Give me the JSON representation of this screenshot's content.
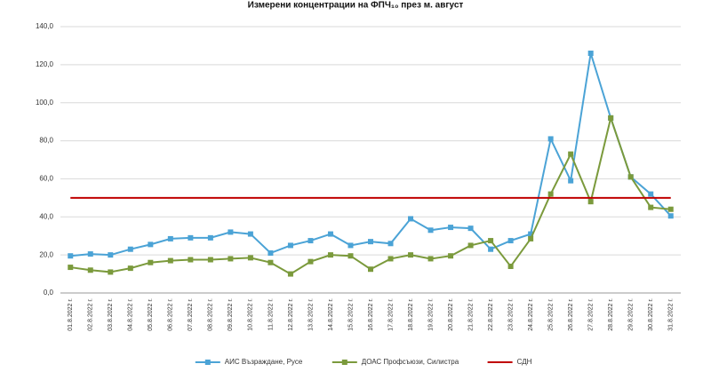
{
  "chart_data": {
    "type": "line",
    "title": "Измерени концентрации на ФПЧ₁₀ през м. август",
    "categories": [
      "01.8.2022 г.",
      "02.8.2022 г.",
      "03.8.2022 г.",
      "04.8.2022 г.",
      "05.8.2022 г.",
      "06.8.2022 г.",
      "07.8.2022 г.",
      "08.8.2022 г.",
      "09.8.2022 г.",
      "10.8.2022 г.",
      "11.8.2022 г.",
      "12.8.2022 г.",
      "13.8.2022 г.",
      "14.8.2022 г.",
      "15.8.2022 г.",
      "16.8.2022 г.",
      "17.8.2022 г.",
      "18.8.2022 г.",
      "19.8.2022 г.",
      "20.8.2022 г.",
      "21.8.2022 г.",
      "22.8.2022 г.",
      "23.8.2022 г.",
      "24.8.2022 г.",
      "25.8.2022 г.",
      "26.8.2022 г.",
      "27.8.2022 г.",
      "28.8.2022 г.",
      "29.8.2022 г.",
      "30.8.2022 г.",
      "31.8.2022 г."
    ],
    "series": [
      {
        "name": "АИС Възраждане, Русе",
        "color": "#4ba3d6",
        "marker": true,
        "values": [
          19.5,
          20.5,
          20,
          23,
          25.5,
          28.5,
          29,
          29,
          32,
          31,
          21,
          25,
          27.5,
          31,
          25,
          27,
          26,
          39,
          33,
          34.5,
          34,
          23,
          27.5,
          31,
          81,
          59,
          126,
          92,
          61,
          52,
          40.5
        ]
      },
      {
        "name": "ДОАС Профсъюзи, Силистра",
        "color": "#7b9a3c",
        "marker": true,
        "values": [
          13.5,
          12,
          11,
          13,
          16,
          17,
          17.5,
          17.5,
          18,
          18.5,
          16,
          10,
          16.5,
          20,
          19.5,
          12.5,
          18,
          20,
          18,
          19.5,
          25,
          27.5,
          14,
          28.5,
          52,
          73,
          48,
          92,
          61,
          45,
          44
        ]
      },
      {
        "name": "СДН",
        "color": "#c00000",
        "marker": false,
        "values": [
          50,
          50,
          50,
          50,
          50,
          50,
          50,
          50,
          50,
          50,
          50,
          50,
          50,
          50,
          50,
          50,
          50,
          50,
          50,
          50,
          50,
          50,
          50,
          50,
          50,
          50,
          50,
          50,
          50,
          50,
          50
        ]
      }
    ],
    "ylim": [
      0,
      140
    ],
    "yticks": [
      {
        "value": 0,
        "label": "0,0"
      },
      {
        "value": 20,
        "label": "20,0"
      },
      {
        "value": 40,
        "label": "40,0"
      },
      {
        "value": 60,
        "label": "60,0"
      },
      {
        "value": 80,
        "label": "80,0"
      },
      {
        "value": 100,
        "label": "100,0"
      },
      {
        "value": 120,
        "label": "120,0"
      },
      {
        "value": 140,
        "label": "140,0"
      }
    ],
    "grid": true,
    "legend": "bottom"
  }
}
